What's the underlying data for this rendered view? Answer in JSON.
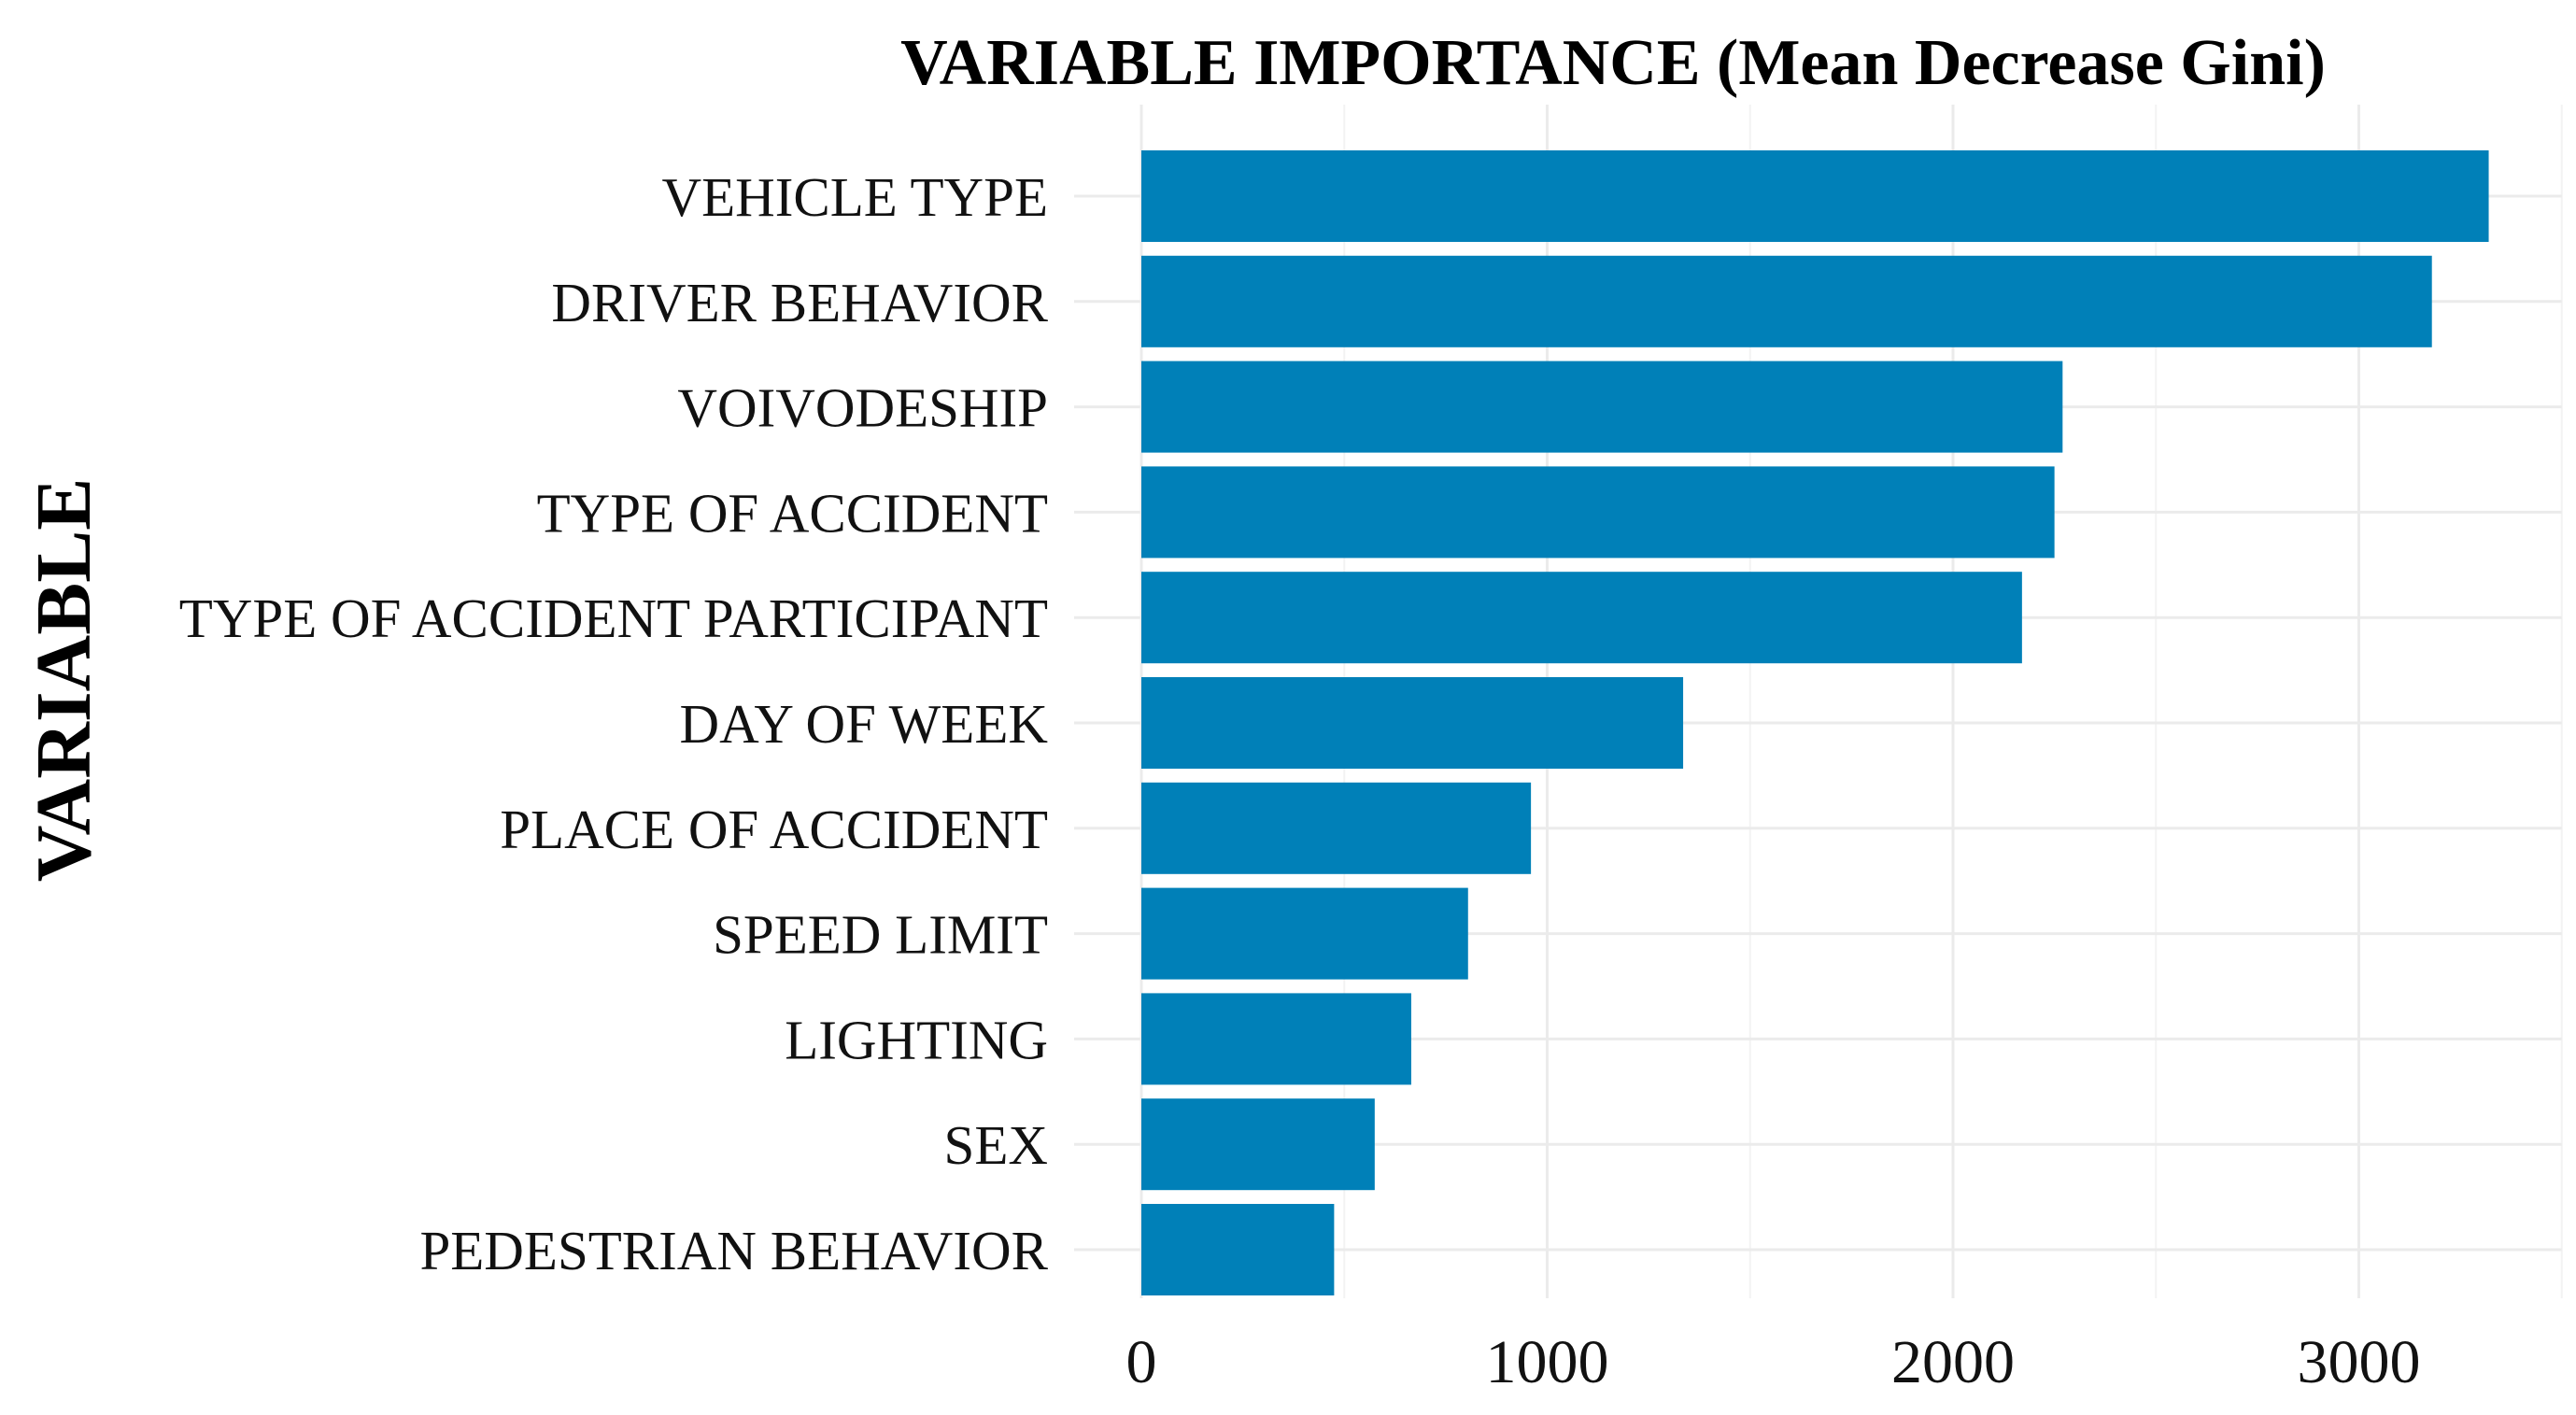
{
  "chart_data": {
    "type": "bar",
    "orientation": "horizontal",
    "title": "VARIABLE IMPORTANCE (Mean Decrease Gini)",
    "xlabel": "",
    "ylabel": "VARIABLE",
    "categories": [
      "VEHICLE TYPE",
      "DRIVER BEHAVIOR",
      "VOIVODESHIP",
      "TYPE OF ACCIDENT",
      "TYPE OF ACCIDENT PARTICIPANT",
      "DAY OF WEEK",
      "PLACE OF ACCIDENT",
      "SPEED LIMIT",
      "LIGHTING",
      "SEX",
      "PEDESTRIAN BEHAVIOR"
    ],
    "values": [
      3320,
      3180,
      2270,
      2250,
      2170,
      1335,
      960,
      805,
      665,
      575,
      475
    ],
    "xlim": [
      0,
      3500
    ],
    "xticks": [
      0,
      1000,
      2000,
      3000
    ],
    "xtick_labels": [
      "0",
      "1000",
      "2000",
      "3000"
    ],
    "bar_color": "#0080b8",
    "grid": true
  }
}
